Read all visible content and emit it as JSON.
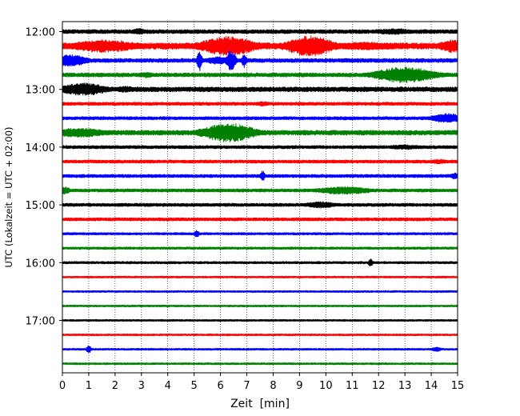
{
  "chart_data": {
    "type": "line",
    "title": "",
    "xlabel": "Zeit  [min]",
    "ylabel": "UTC (Lokalzeit = UTC + 02:00)",
    "xlim": [
      0,
      15
    ],
    "x_ticks": [
      0,
      1,
      2,
      3,
      4,
      5,
      6,
      7,
      8,
      9,
      10,
      11,
      12,
      13,
      14,
      15
    ],
    "x_tick_labels": [
      "0",
      "1",
      "2",
      "3",
      "4",
      "5",
      "6",
      "7",
      "8",
      "9",
      "10",
      "11",
      "12",
      "13",
      "14",
      "15"
    ],
    "y_tick_labels": [
      "12:00",
      "13:00",
      "14:00",
      "15:00",
      "16:00",
      "17:00"
    ],
    "y_tick_traces": [
      0,
      4,
      8,
      12,
      16,
      20
    ],
    "grid": "vertical dotted",
    "trace_colors": [
      "#000000",
      "#ff0000",
      "#0000ff",
      "#008000"
    ],
    "traces": [
      {
        "label": "12:00",
        "color": "#000000",
        "amplitude": 2.5,
        "envelope": [
          [
            2.9,
            0.3,
            4
          ],
          [
            12.6,
            0.8,
            4
          ]
        ]
      },
      {
        "label": "12:15",
        "color": "#ff0000",
        "amplitude": 4,
        "envelope": [
          [
            1.6,
            1.5,
            8
          ],
          [
            6.3,
            1.2,
            12
          ],
          [
            9.4,
            1.0,
            13
          ],
          [
            11.5,
            1.5,
            5
          ],
          [
            14.8,
            0.6,
            8
          ]
        ]
      },
      {
        "label": "12:30",
        "color": "#0000ff",
        "amplitude": 2.5,
        "envelope": [
          [
            0.3,
            0.7,
            8
          ],
          [
            5.2,
            0.1,
            14
          ],
          [
            5.9,
            0.5,
            5
          ],
          [
            6.4,
            0.2,
            13
          ],
          [
            6.9,
            0.1,
            9
          ]
        ]
      },
      {
        "label": "12:45",
        "color": "#008000",
        "amplitude": 2.5,
        "envelope": [
          [
            3.2,
            0.3,
            4
          ],
          [
            13.0,
            1.3,
            10
          ]
        ]
      },
      {
        "label": "13:00",
        "color": "#000000",
        "amplitude": 3,
        "envelope": [
          [
            0.8,
            1.0,
            8
          ],
          [
            2.4,
            0.5,
            4
          ]
        ]
      },
      {
        "label": "13:15",
        "color": "#ff0000",
        "amplitude": 2,
        "envelope": [
          [
            7.6,
            0.3,
            3
          ]
        ]
      },
      {
        "label": "13:30",
        "color": "#0000ff",
        "amplitude": 2,
        "envelope": [
          [
            14.6,
            0.7,
            6
          ]
        ]
      },
      {
        "label": "13:45",
        "color": "#008000",
        "amplitude": 3,
        "envelope": [
          [
            0.6,
            1.2,
            6
          ],
          [
            6.3,
            1.1,
            12
          ]
        ]
      },
      {
        "label": "14:00",
        "color": "#000000",
        "amplitude": 2,
        "envelope": [
          [
            13.0,
            0.8,
            3
          ]
        ]
      },
      {
        "label": "14:15",
        "color": "#ff0000",
        "amplitude": 2,
        "envelope": [
          [
            14.3,
            0.4,
            3
          ]
        ]
      },
      {
        "label": "14:30",
        "color": "#0000ff",
        "amplitude": 2,
        "envelope": [
          [
            7.6,
            0.1,
            7
          ],
          [
            14.9,
            0.2,
            4
          ]
        ]
      },
      {
        "label": "14:45",
        "color": "#008000",
        "amplitude": 2,
        "envelope": [
          [
            0.1,
            0.2,
            5
          ],
          [
            10.7,
            1.2,
            5
          ]
        ]
      },
      {
        "label": "15:00",
        "color": "#000000",
        "amplitude": 2,
        "envelope": [
          [
            9.8,
            0.7,
            4
          ]
        ]
      },
      {
        "label": "15:15",
        "color": "#ff0000",
        "amplitude": 2,
        "envelope": []
      },
      {
        "label": "15:30",
        "color": "#0000ff",
        "amplitude": 1.5,
        "envelope": [
          [
            5.1,
            0.1,
            5
          ]
        ]
      },
      {
        "label": "15:45",
        "color": "#008000",
        "amplitude": 1.5,
        "envelope": []
      },
      {
        "label": "16:00",
        "color": "#000000",
        "amplitude": 1.5,
        "envelope": [
          [
            11.7,
            0.1,
            5
          ]
        ]
      },
      {
        "label": "16:15",
        "color": "#ff0000",
        "amplitude": 1.2,
        "envelope": []
      },
      {
        "label": "16:30",
        "color": "#0000ff",
        "amplitude": 1.2,
        "envelope": []
      },
      {
        "label": "16:45",
        "color": "#008000",
        "amplitude": 1.2,
        "envelope": []
      },
      {
        "label": "17:00",
        "color": "#000000",
        "amplitude": 1.2,
        "envelope": []
      },
      {
        "label": "17:15",
        "color": "#ff0000",
        "amplitude": 1.2,
        "envelope": []
      },
      {
        "label": "17:30",
        "color": "#0000ff",
        "amplitude": 1.2,
        "envelope": [
          [
            1.0,
            0.1,
            5
          ],
          [
            14.2,
            0.2,
            3
          ]
        ]
      },
      {
        "label": "17:45",
        "color": "#008000",
        "amplitude": 1.2,
        "envelope": []
      }
    ]
  }
}
